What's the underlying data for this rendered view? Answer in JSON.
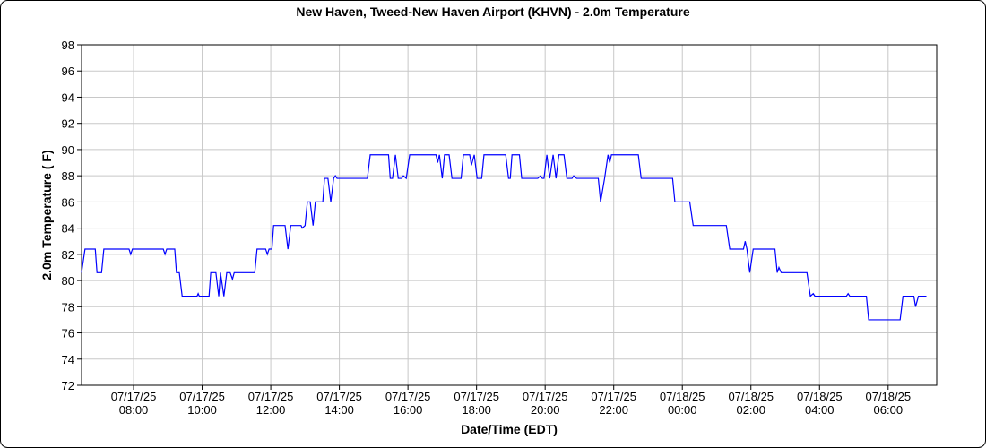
{
  "chart_data": {
    "type": "line",
    "title": "New Haven, Tweed-New Haven Airport (KHVN) - 2.0m Temperature",
    "y_label": "2.0m Temperature ( F)",
    "x_label": "Date/Time (EDT)",
    "color": "#0000ff",
    "grid": true,
    "ylim": [
      72,
      98
    ],
    "yticks": [
      72,
      74,
      76,
      78,
      80,
      82,
      84,
      86,
      88,
      90,
      92,
      94,
      96,
      98
    ],
    "xlim": [
      "07/17/25 06:29",
      "07/18/25 07:25"
    ],
    "xticks": [
      "07/17/25 08:00",
      "07/17/25 10:00",
      "07/17/25 12:00",
      "07/17/25 14:00",
      "07/17/25 16:00",
      "07/17/25 18:00",
      "07/17/25 20:00",
      "07/17/25 22:00",
      "07/18/25 00:00",
      "07/18/25 02:00",
      "07/18/25 04:00",
      "07/18/25 06:00"
    ],
    "x": [
      "07/17/25 06:29",
      "07/17/25 06:35",
      "07/17/25 06:53",
      "07/17/25 06:56",
      "07/17/25 07:04",
      "07/17/25 07:08",
      "07/17/25 07:52",
      "07/17/25 07:55",
      "07/17/25 07:58",
      "07/17/25 08:52",
      "07/17/25 08:55",
      "07/17/25 08:58",
      "07/17/25 09:12",
      "07/17/25 09:15",
      "07/17/25 09:20",
      "07/17/25 09:25",
      "07/17/25 09:51",
      "07/17/25 09:53",
      "07/17/25 09:55",
      "07/17/25 10:12",
      "07/17/25 10:15",
      "07/17/25 10:24",
      "07/17/25 10:29",
      "07/17/25 10:32",
      "07/17/25 10:38",
      "07/17/25 10:43",
      "07/17/25 10:49",
      "07/17/25 10:53",
      "07/17/25 10:56",
      "07/17/25 11:32",
      "07/17/25 11:36",
      "07/17/25 11:51",
      "07/17/25 11:54",
      "07/17/25 11:57",
      "07/17/25 12:02",
      "07/17/25 12:05",
      "07/17/25 12:25",
      "07/17/25 12:30",
      "07/17/25 12:35",
      "07/17/25 12:53",
      "07/17/25 12:55",
      "07/17/25 13:00",
      "07/17/25 13:04",
      "07/17/25 13:09",
      "07/17/25 13:14",
      "07/17/25 13:18",
      "07/17/25 13:31",
      "07/17/25 13:34",
      "07/17/25 13:40",
      "07/17/25 13:45",
      "07/17/25 13:50",
      "07/17/25 13:53",
      "07/17/25 13:56",
      "07/17/25 14:49",
      "07/17/25 14:54",
      "07/17/25 15:26",
      "07/17/25 15:29",
      "07/17/25 15:33",
      "07/17/25 15:38",
      "07/17/25 15:43",
      "07/17/25 15:49",
      "07/17/25 15:52",
      "07/17/25 15:57",
      "07/17/25 16:03",
      "07/17/25 16:49",
      "07/17/25 16:52",
      "07/17/25 16:55",
      "07/17/25 17:00",
      "07/17/25 17:04",
      "07/17/25 17:12",
      "07/17/25 17:17",
      "07/17/25 17:33",
      "07/17/25 17:37",
      "07/17/25 17:48",
      "07/17/25 17:51",
      "07/17/25 17:56",
      "07/17/25 18:01",
      "07/17/25 18:09",
      "07/17/25 18:13",
      "07/17/25 18:51",
      "07/17/25 18:56",
      "07/17/25 18:59",
      "07/17/25 19:02",
      "07/17/25 19:15",
      "07/17/25 19:19",
      "07/17/25 19:47",
      "07/17/25 19:52",
      "07/17/25 19:55",
      "07/17/25 19:58",
      "07/17/25 20:03",
      "07/17/25 20:08",
      "07/17/25 20:14",
      "07/17/25 20:19",
      "07/17/25 20:24",
      "07/17/25 20:33",
      "07/17/25 20:38",
      "07/17/25 20:47",
      "07/17/25 20:50",
      "07/17/25 20:55",
      "07/17/25 21:33",
      "07/17/25 21:37",
      "07/17/25 21:44",
      "07/17/25 21:50",
      "07/17/25 21:53",
      "07/17/25 21:56",
      "07/17/25 22:43",
      "07/17/25 22:48",
      "07/17/25 23:43",
      "07/17/25 23:47",
      "07/18/25 00:13",
      "07/18/25 00:19",
      "07/18/25 01:17",
      "07/18/25 01:23",
      "07/18/25 01:47",
      "07/18/25 01:50",
      "07/18/25 01:53",
      "07/18/25 01:58",
      "07/18/25 02:04",
      "07/18/25 02:42",
      "07/18/25 02:46",
      "07/18/25 02:49",
      "07/18/25 02:53",
      "07/18/25 03:38",
      "07/18/25 03:44",
      "07/18/25 03:49",
      "07/18/25 03:52",
      "07/18/25 04:47",
      "07/18/25 04:50",
      "07/18/25 04:53",
      "07/18/25 05:22",
      "07/18/25 05:26",
      "07/18/25 06:21",
      "07/18/25 06:26",
      "07/18/25 06:45",
      "07/18/25 06:48",
      "07/18/25 06:53",
      "07/18/25 07:07"
    ],
    "values": [
      80.6,
      82.4,
      82.4,
      80.6,
      80.6,
      82.4,
      82.4,
      82.0,
      82.4,
      82.4,
      82.0,
      82.4,
      82.4,
      80.6,
      80.6,
      78.8,
      78.8,
      79.0,
      78.8,
      78.8,
      80.6,
      80.6,
      78.8,
      80.6,
      78.8,
      80.6,
      80.6,
      80.1,
      80.6,
      80.6,
      82.4,
      82.4,
      82.0,
      82.4,
      82.4,
      84.2,
      84.2,
      82.4,
      84.2,
      84.2,
      84.0,
      84.2,
      86.0,
      86.0,
      84.2,
      86.0,
      86.0,
      87.8,
      87.8,
      86.0,
      87.8,
      88.0,
      87.8,
      87.8,
      89.6,
      89.6,
      87.8,
      87.8,
      89.6,
      87.8,
      87.8,
      88.0,
      87.8,
      89.6,
      89.6,
      89.0,
      89.6,
      87.8,
      89.6,
      89.6,
      87.8,
      87.8,
      89.6,
      89.6,
      88.8,
      89.6,
      87.8,
      87.8,
      89.6,
      89.6,
      87.8,
      87.8,
      89.6,
      89.6,
      87.8,
      87.8,
      88.0,
      87.8,
      87.8,
      89.6,
      87.8,
      89.6,
      87.8,
      89.6,
      89.6,
      87.8,
      87.8,
      88.0,
      87.8,
      87.8,
      86.0,
      87.8,
      89.6,
      89.0,
      89.6,
      89.6,
      87.8,
      87.8,
      86.0,
      86.0,
      84.2,
      84.2,
      82.4,
      82.4,
      83.0,
      82.4,
      80.6,
      82.4,
      82.4,
      80.6,
      81.0,
      80.6,
      80.6,
      78.8,
      79.0,
      78.8,
      78.8,
      79.0,
      78.8,
      78.8,
      77.0,
      77.0,
      78.8,
      78.8,
      78.0,
      78.8,
      78.8
    ]
  }
}
